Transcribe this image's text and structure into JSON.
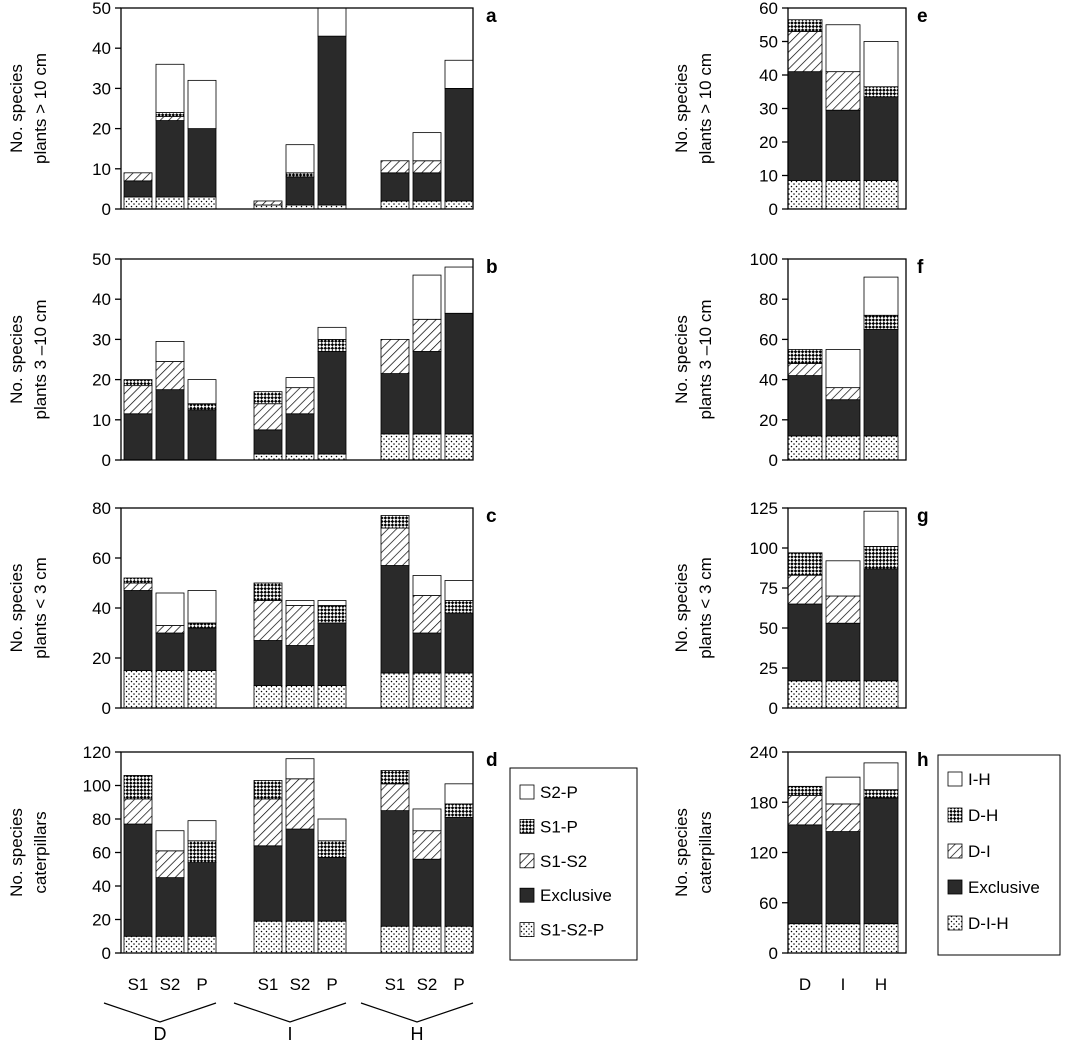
{
  "chart_data": [
    {
      "panel": "a",
      "type": "bar",
      "stacked": true,
      "ylabel": [
        "No. species",
        "plants > 10 cm"
      ],
      "ylim": [
        0,
        50
      ],
      "yticks": [
        0,
        10,
        20,
        30,
        40,
        50
      ],
      "categories": [
        "S1",
        "S2",
        "P",
        "S1",
        "S2",
        "P",
        "S1",
        "S2",
        "P"
      ],
      "groups": [
        "D",
        "I",
        "H"
      ],
      "series": [
        {
          "name": "S1-S2-P",
          "values": [
            3,
            3,
            3,
            1,
            1,
            1,
            2,
            2,
            2
          ]
        },
        {
          "name": "Exclusive",
          "values": [
            4,
            19,
            17,
            0,
            7,
            42,
            7,
            7,
            28
          ]
        },
        {
          "name": "S1-S2",
          "values": [
            2,
            1,
            0,
            1,
            0,
            0,
            3,
            3,
            0
          ]
        },
        {
          "name": "S1-P",
          "values": [
            0,
            1,
            0,
            0,
            1,
            0,
            0,
            0,
            0
          ]
        },
        {
          "name": "S2-P",
          "values": [
            0,
            12,
            12,
            0,
            7,
            7,
            0,
            7,
            7
          ]
        }
      ]
    },
    {
      "panel": "b",
      "type": "bar",
      "stacked": true,
      "ylabel": [
        "No. species",
        "plants 3 –10 cm"
      ],
      "ylim": [
        0,
        50
      ],
      "yticks": [
        0,
        10,
        20,
        30,
        40,
        50
      ],
      "categories": [
        "S1",
        "S2",
        "P",
        "S1",
        "S2",
        "P",
        "S1",
        "S2",
        "P"
      ],
      "groups": [
        "D",
        "I",
        "H"
      ],
      "series": [
        {
          "name": "S1-S2-P",
          "values": [
            0,
            0,
            0,
            1.5,
            1.5,
            1.5,
            6.5,
            6.5,
            6.5
          ]
        },
        {
          "name": "Exclusive",
          "values": [
            11.5,
            17.5,
            12.5,
            6,
            10,
            25.5,
            15,
            20.5,
            30
          ]
        },
        {
          "name": "S1-S2",
          "values": [
            7,
            7,
            0,
            6.5,
            6.5,
            0,
            8.5,
            8,
            0
          ]
        },
        {
          "name": "S1-P",
          "values": [
            1.5,
            0,
            1.5,
            3,
            0,
            3,
            0,
            0,
            0
          ]
        },
        {
          "name": "S2-P",
          "values": [
            0,
            5,
            6,
            0,
            2.5,
            3,
            0,
            11,
            11.5
          ]
        }
      ]
    },
    {
      "panel": "c",
      "type": "bar",
      "stacked": true,
      "ylabel": [
        "No. species",
        "plants < 3 cm"
      ],
      "ylim": [
        0,
        80
      ],
      "yticks": [
        0,
        20,
        40,
        60,
        80
      ],
      "categories": [
        "S1",
        "S2",
        "P",
        "S1",
        "S2",
        "P",
        "S1",
        "S2",
        "P"
      ],
      "groups": [
        "D",
        "I",
        "H"
      ],
      "series": [
        {
          "name": "S1-S2-P",
          "values": [
            15,
            15,
            15,
            9,
            9,
            9,
            14,
            14,
            14
          ]
        },
        {
          "name": "Exclusive",
          "values": [
            32,
            15,
            17,
            18,
            16,
            25,
            43,
            16,
            24
          ]
        },
        {
          "name": "S1-S2",
          "values": [
            3,
            3,
            0,
            16,
            16,
            0,
            15,
            15,
            0
          ]
        },
        {
          "name": "S1-P",
          "values": [
            2,
            0,
            2,
            7,
            0,
            7,
            5,
            0,
            5
          ]
        },
        {
          "name": "S2-P",
          "values": [
            0,
            13,
            13,
            0,
            2,
            2,
            0,
            8,
            8
          ]
        }
      ]
    },
    {
      "panel": "d",
      "type": "bar",
      "stacked": true,
      "ylabel": [
        "No. species",
        "caterpillars"
      ],
      "ylim": [
        0,
        120
      ],
      "yticks": [
        0,
        20,
        40,
        60,
        80,
        100,
        120
      ],
      "categories": [
        "S1",
        "S2",
        "P",
        "S1",
        "S2",
        "P",
        "S1",
        "S2",
        "P"
      ],
      "groups": [
        "D",
        "I",
        "H"
      ],
      "series": [
        {
          "name": "S1-S2-P",
          "values": [
            10,
            10,
            10,
            19,
            19,
            19,
            16,
            16,
            16
          ]
        },
        {
          "name": "Exclusive",
          "values": [
            67,
            35,
            44,
            45,
            55,
            38,
            69,
            40,
            65
          ]
        },
        {
          "name": "S1-S2",
          "values": [
            15,
            16,
            0,
            28,
            30,
            0,
            16,
            17,
            0
          ]
        },
        {
          "name": "S1-P",
          "values": [
            14,
            0,
            13,
            11,
            0,
            10,
            8,
            0,
            8
          ]
        },
        {
          "name": "S2-P",
          "values": [
            0,
            12,
            12,
            0,
            12,
            13,
            0,
            13,
            12
          ]
        }
      ]
    },
    {
      "panel": "e",
      "type": "bar",
      "stacked": true,
      "ylabel": [
        "No. species",
        "plants > 10 cm"
      ],
      "ylim": [
        0,
        60
      ],
      "yticks": [
        0,
        10,
        20,
        30,
        40,
        50,
        60
      ],
      "categories": [
        "D",
        "I",
        "H"
      ],
      "series": [
        {
          "name": "D-I-H",
          "values": [
            8.5,
            8.5,
            8.5
          ]
        },
        {
          "name": "Exclusive",
          "values": [
            32.5,
            21,
            25
          ]
        },
        {
          "name": "D-I",
          "values": [
            12,
            11.5,
            0
          ]
        },
        {
          "name": "D-H",
          "values": [
            3.5,
            0,
            3
          ]
        },
        {
          "name": "I-H",
          "values": [
            0,
            14,
            13.5
          ]
        }
      ]
    },
    {
      "panel": "f",
      "type": "bar",
      "stacked": true,
      "ylabel": [
        "No. species",
        "plants 3 –10 cm"
      ],
      "ylim": [
        0,
        100
      ],
      "yticks": [
        0,
        20,
        40,
        60,
        80,
        100
      ],
      "categories": [
        "D",
        "I",
        "H"
      ],
      "series": [
        {
          "name": "D-I-H",
          "values": [
            12,
            12,
            12
          ]
        },
        {
          "name": "Exclusive",
          "values": [
            30,
            18,
            53
          ]
        },
        {
          "name": "D-I",
          "values": [
            6,
            6,
            0
          ]
        },
        {
          "name": "D-H",
          "values": [
            7,
            0,
            7
          ]
        },
        {
          "name": "I-H",
          "values": [
            0,
            19,
            19
          ]
        }
      ]
    },
    {
      "panel": "g",
      "type": "bar",
      "stacked": true,
      "ylabel": [
        "No. species",
        "plants < 3 cm"
      ],
      "ylim": [
        0,
        125
      ],
      "yticks": [
        0,
        25,
        50,
        75,
        100,
        125
      ],
      "categories": [
        "D",
        "I",
        "H"
      ],
      "series": [
        {
          "name": "D-I-H",
          "values": [
            17,
            17,
            17
          ]
        },
        {
          "name": "Exclusive",
          "values": [
            48,
            36,
            70
          ]
        },
        {
          "name": "D-I",
          "values": [
            18,
            17,
            0
          ]
        },
        {
          "name": "D-H",
          "values": [
            14,
            0,
            14
          ]
        },
        {
          "name": "I-H",
          "values": [
            0,
            22,
            22
          ]
        }
      ]
    },
    {
      "panel": "h",
      "type": "bar",
      "stacked": true,
      "ylabel": [
        "No. species",
        "caterpillars"
      ],
      "ylim": [
        0,
        240
      ],
      "yticks": [
        0,
        60,
        120,
        180,
        240
      ],
      "categories": [
        "D",
        "I",
        "H"
      ],
      "series": [
        {
          "name": "D-I-H",
          "values": [
            35,
            35,
            35
          ]
        },
        {
          "name": "Exclusive",
          "values": [
            118,
            110,
            150
          ]
        },
        {
          "name": "D-I",
          "values": [
            35,
            33,
            0
          ]
        },
        {
          "name": "D-H",
          "values": [
            11,
            0,
            10
          ]
        },
        {
          "name": "I-H",
          "values": [
            0,
            32,
            32
          ]
        }
      ]
    }
  ],
  "legends": {
    "left": [
      "S2-P",
      "S1-P",
      "S1-S2",
      "Exclusive",
      "S1-S2-P"
    ],
    "right": [
      "I-H",
      "D-H",
      "D-I",
      "Exclusive",
      "D-I-H"
    ]
  },
  "fills": {
    "pattern_order": [
      "dots",
      "solid",
      "hatch",
      "checker",
      "white"
    ],
    "solid_color": "#2a2a2a"
  }
}
